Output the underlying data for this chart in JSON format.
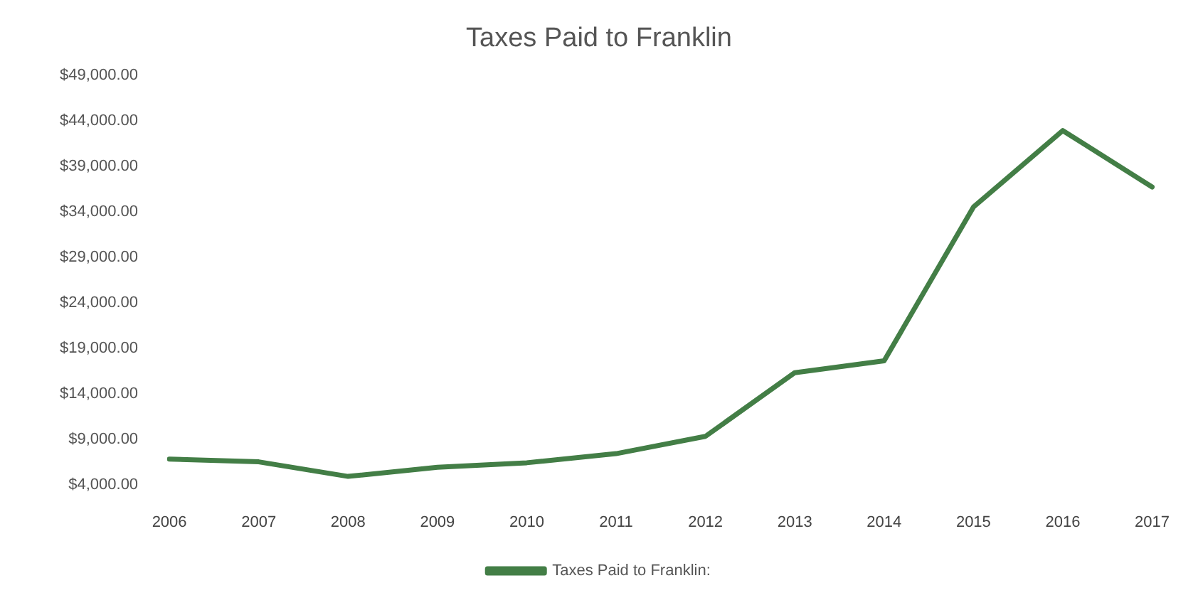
{
  "chart_data": {
    "type": "line",
    "title": "Taxes Paid to Franklin",
    "categories": [
      "2006",
      "2007",
      "2008",
      "2009",
      "2010",
      "2011",
      "2012",
      "2013",
      "2014",
      "2015",
      "2016",
      "2017"
    ],
    "series": [
      {
        "name": "Taxes Paid to Franklin:",
        "color": "#437e46",
        "values": [
          6800,
          6500,
          4900,
          5900,
          6400,
          7400,
          9300,
          16300,
          17600,
          34500,
          42900,
          36700
        ]
      }
    ],
    "ylim": [
      4000,
      49000
    ],
    "yticks": [
      {
        "value": 4000,
        "label": "$4,000.00"
      },
      {
        "value": 9000,
        "label": "$9,000.00"
      },
      {
        "value": 14000,
        "label": "$14,000.00"
      },
      {
        "value": 19000,
        "label": "$19,000.00"
      },
      {
        "value": 24000,
        "label": "$24,000.00"
      },
      {
        "value": 29000,
        "label": "$29,000.00"
      },
      {
        "value": 34000,
        "label": "$34,000.00"
      },
      {
        "value": 39000,
        "label": "$39,000.00"
      },
      {
        "value": 44000,
        "label": "$44,000.00"
      },
      {
        "value": 49000,
        "label": "$49,000.00"
      }
    ],
    "grid": false,
    "legend": "bottom",
    "marker": "none",
    "line_style": "solid"
  }
}
